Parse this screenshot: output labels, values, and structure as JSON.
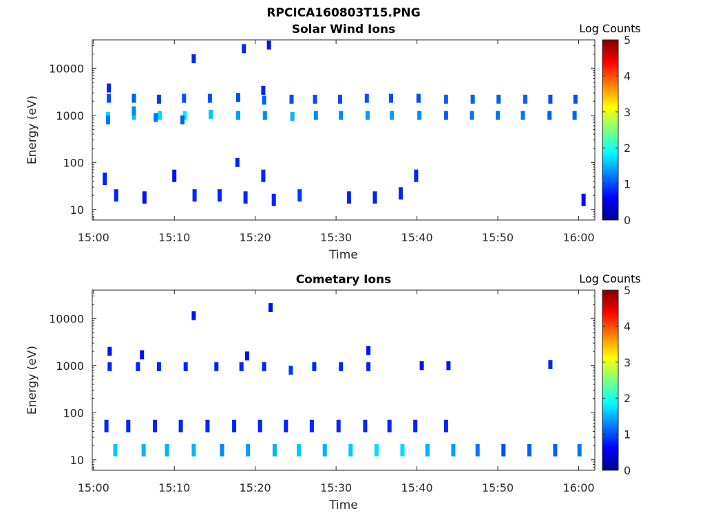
{
  "figure": {
    "filename_title": "RPCICA160803T15.PNG"
  },
  "colorbar": {
    "label": "Log Counts",
    "ticks": [
      "5",
      "4",
      "3",
      "2",
      "1",
      "0"
    ],
    "range": [
      0,
      5
    ],
    "colormap": "jet",
    "colors": [
      "#00008f",
      "#0000ff",
      "#0080ff",
      "#00ffff",
      "#80ff80",
      "#ffff00",
      "#ff8000",
      "#ff0000",
      "#800000"
    ]
  },
  "chart_data": [
    {
      "type": "heatmap",
      "title": "Solar Wind Ions",
      "xlabel": "Time",
      "ylabel": "Energy (eV)",
      "y_scale": "log",
      "xlim": [
        "15:00",
        "16:02"
      ],
      "ylim": [
        6,
        40000
      ],
      "x_ticks": [
        "15:00",
        "15:10",
        "15:20",
        "15:30",
        "15:40",
        "15:50",
        "16:00"
      ],
      "y_ticks": [
        "10",
        "100",
        "1000",
        "10000"
      ],
      "color_scale": "Log Counts 0-5",
      "cells_description": "time (minutes after 15:00), energy in eV, log counts",
      "cells": [
        [
          1.8,
          950,
          1.7
        ],
        [
          1.8,
          800,
          1.2
        ],
        [
          1.9,
          2300,
          1.0
        ],
        [
          1.9,
          3800,
          0.8
        ],
        [
          5.0,
          1000,
          1.6
        ],
        [
          5.0,
          2300,
          1.1
        ],
        [
          5.0,
          1250,
          1.3
        ],
        [
          8.2,
          1000,
          1.7
        ],
        [
          8.1,
          2200,
          0.9
        ],
        [
          7.7,
          900,
          1.2
        ],
        [
          11.3,
          1000,
          1.8
        ],
        [
          11.2,
          2300,
          1.0
        ],
        [
          11.0,
          800,
          1.1
        ],
        [
          14.5,
          1050,
          1.6
        ],
        [
          14.4,
          2300,
          1.0
        ],
        [
          17.9,
          1000,
          1.4
        ],
        [
          17.9,
          2400,
          1.0
        ],
        [
          21.2,
          1000,
          1.3
        ],
        [
          21.1,
          2100,
          1.1
        ],
        [
          21.0,
          3400,
          0.8
        ],
        [
          24.6,
          950,
          1.5
        ],
        [
          24.5,
          2200,
          1.0
        ],
        [
          27.5,
          1000,
          1.3
        ],
        [
          27.4,
          2200,
          1.0
        ],
        [
          30.6,
          1000,
          1.3
        ],
        [
          30.5,
          2200,
          1.0
        ],
        [
          33.9,
          1000,
          1.4
        ],
        [
          33.8,
          2300,
          1.0
        ],
        [
          36.9,
          1000,
          1.4
        ],
        [
          36.8,
          2300,
          1.0
        ],
        [
          40.3,
          1000,
          1.3
        ],
        [
          40.2,
          2300,
          1.0
        ],
        [
          43.6,
          1000,
          1.1
        ],
        [
          43.6,
          2200,
          1.1
        ],
        [
          46.8,
          1000,
          1.2
        ],
        [
          46.9,
          2200,
          1.1
        ],
        [
          50.0,
          1000,
          1.2
        ],
        [
          50.1,
          2200,
          1.1
        ],
        [
          53.1,
          1000,
          1.2
        ],
        [
          53.4,
          2200,
          1.1
        ],
        [
          56.4,
          1000,
          1.1
        ],
        [
          56.5,
          2200,
          1.0
        ],
        [
          59.5,
          1000,
          1.1
        ],
        [
          59.6,
          2200,
          1.0
        ],
        [
          1.4,
          45,
          0.8
        ],
        [
          2.8,
          20,
          0.8
        ],
        [
          6.3,
          18,
          0.7
        ],
        [
          10.0,
          52,
          0.7
        ],
        [
          12.5,
          20,
          0.8
        ],
        [
          15.6,
          20,
          0.8
        ],
        [
          18.8,
          18,
          0.8
        ],
        [
          21.0,
          52,
          0.8
        ],
        [
          22.3,
          16,
          0.8
        ],
        [
          25.5,
          20,
          0.9
        ],
        [
          31.6,
          18,
          0.8
        ],
        [
          34.8,
          18,
          0.8
        ],
        [
          38.0,
          22,
          0.8
        ],
        [
          39.9,
          52,
          0.8
        ],
        [
          60.6,
          16,
          0.6
        ],
        [
          12.4,
          16000,
          0.8
        ],
        [
          18.6,
          26000,
          0.8
        ],
        [
          21.7,
          31000,
          0.7
        ],
        [
          17.8,
          100,
          0.8
        ]
      ]
    },
    {
      "type": "heatmap",
      "title": "Cometary Ions",
      "xlabel": "Time",
      "ylabel": "Energy (eV)",
      "y_scale": "log",
      "xlim": [
        "15:00",
        "16:02"
      ],
      "ylim": [
        6,
        40000
      ],
      "x_ticks": [
        "15:00",
        "15:10",
        "15:20",
        "15:30",
        "15:40",
        "15:50",
        "16:00"
      ],
      "y_ticks": [
        "10",
        "100",
        "1000",
        "10000"
      ],
      "color_scale": "Log Counts 0-5",
      "cells_description": "time (minutes after 15:00), energy in eV, log counts",
      "cells": [
        [
          2.7,
          16,
          1.6
        ],
        [
          6.2,
          16,
          1.5
        ],
        [
          9.1,
          16,
          1.5
        ],
        [
          12.4,
          16,
          1.5
        ],
        [
          15.9,
          16,
          1.3
        ],
        [
          19.1,
          16,
          1.4
        ],
        [
          22.4,
          16,
          1.5
        ],
        [
          25.4,
          16,
          1.6
        ],
        [
          28.6,
          16,
          1.5
        ],
        [
          31.8,
          16,
          1.6
        ],
        [
          35.0,
          16,
          1.7
        ],
        [
          38.2,
          16,
          1.7
        ],
        [
          41.3,
          16,
          1.5
        ],
        [
          44.5,
          16,
          1.4
        ],
        [
          47.5,
          16,
          1.2
        ],
        [
          50.7,
          16,
          1.0
        ],
        [
          53.9,
          16,
          1.1
        ],
        [
          57.1,
          16,
          1.1
        ],
        [
          60.1,
          16,
          1.2
        ],
        [
          1.6,
          52,
          0.8
        ],
        [
          4.3,
          52,
          0.8
        ],
        [
          7.6,
          52,
          0.8
        ],
        [
          10.8,
          52,
          0.8
        ],
        [
          14.1,
          52,
          0.8
        ],
        [
          17.4,
          52,
          0.8
        ],
        [
          20.6,
          52,
          0.8
        ],
        [
          23.8,
          52,
          0.8
        ],
        [
          27.0,
          52,
          0.8
        ],
        [
          30.3,
          52,
          0.8
        ],
        [
          33.6,
          52,
          0.8
        ],
        [
          36.6,
          52,
          0.8
        ],
        [
          39.8,
          52,
          0.8
        ],
        [
          43.6,
          52,
          0.8
        ],
        [
          2.0,
          950,
          0.8
        ],
        [
          5.5,
          950,
          0.8
        ],
        [
          8.1,
          950,
          0.8
        ],
        [
          11.4,
          950,
          0.8
        ],
        [
          15.2,
          950,
          0.8
        ],
        [
          18.3,
          950,
          0.8
        ],
        [
          21.1,
          950,
          0.8
        ],
        [
          24.4,
          800,
          0.9
        ],
        [
          27.3,
          950,
          0.8
        ],
        [
          30.6,
          950,
          0.8
        ],
        [
          34.0,
          950,
          0.8
        ],
        [
          40.6,
          1000,
          0.7
        ],
        [
          43.9,
          1000,
          0.7
        ],
        [
          56.5,
          1050,
          0.8
        ],
        [
          12.4,
          11500,
          0.7
        ],
        [
          21.9,
          17000,
          0.7
        ],
        [
          34.0,
          2100,
          0.7
        ],
        [
          2.0,
          2000,
          0.7
        ],
        [
          6.0,
          1700,
          0.7
        ],
        [
          19.0,
          1600,
          0.7
        ]
      ]
    }
  ]
}
